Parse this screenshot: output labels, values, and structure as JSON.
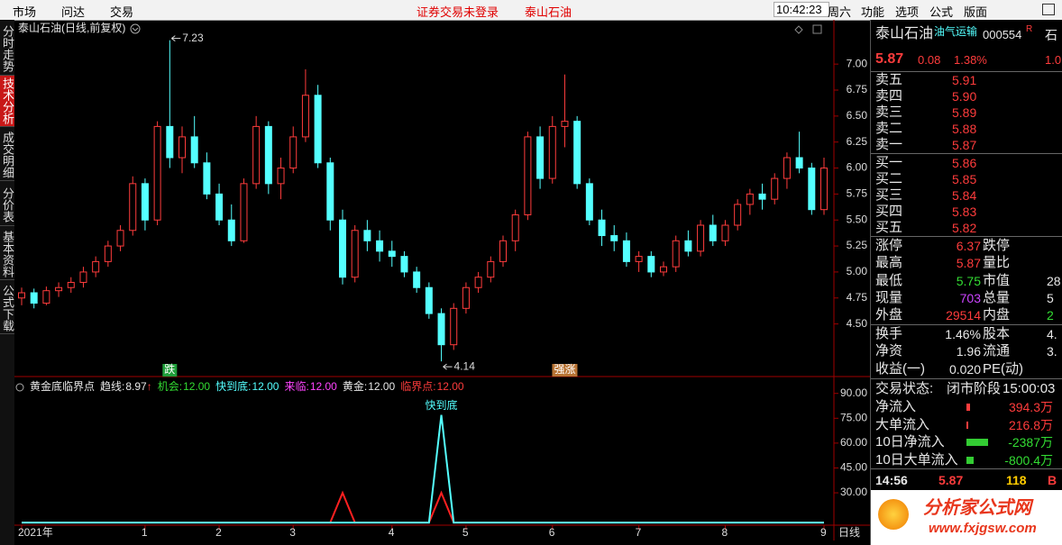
{
  "menu": [
    "市场",
    "问达",
    "交易"
  ],
  "notice": "证券交易未登录",
  "notice_stock": "泰山石油",
  "clock": "10:42:23",
  "weekday": "周六",
  "tools": [
    "功能",
    "选项",
    "公式",
    "版面"
  ],
  "tabs": [
    "分时走势",
    "技术分析",
    "成交明细",
    "分价表",
    "基本资料",
    "公式下载"
  ],
  "active_tab": 1,
  "chart_data": [
    {
      "type": "candlestick",
      "title": "泰山石油(日线,前复权)",
      "open": [
        4.75,
        4.8,
        4.7,
        4.82,
        4.85,
        4.9,
        5.0,
        5.1,
        5.25,
        5.4,
        5.85,
        5.5,
        6.4,
        6.1,
        6.3,
        6.05,
        5.75,
        5.5,
        5.3,
        5.85,
        6.4,
        5.85,
        6.0,
        6.3,
        6.7,
        6.05,
        5.5,
        4.95,
        5.4,
        5.3,
        5.2,
        5.15,
        5.0,
        4.85,
        4.6,
        4.3,
        4.65,
        4.85,
        4.95,
        5.1,
        5.3,
        5.55,
        6.3,
        5.9,
        6.4,
        6.45,
        5.85,
        5.5,
        5.35,
        5.3,
        5.1,
        5.15,
        5.0,
        5.05,
        5.3,
        5.2,
        5.45,
        5.3,
        5.45,
        5.65,
        5.75,
        5.7,
        5.9,
        6.1,
        6.0,
        5.6
      ],
      "high": [
        4.85,
        4.84,
        4.86,
        4.9,
        4.95,
        5.05,
        5.15,
        5.3,
        5.45,
        5.92,
        5.9,
        6.45,
        7.23,
        6.4,
        6.5,
        6.15,
        5.85,
        5.65,
        5.9,
        6.5,
        6.45,
        6.1,
        6.4,
        6.95,
        6.8,
        6.1,
        5.6,
        5.45,
        5.5,
        5.4,
        5.3,
        5.2,
        5.05,
        4.9,
        4.65,
        4.7,
        4.9,
        5.0,
        5.15,
        5.35,
        5.6,
        6.35,
        6.4,
        6.5,
        6.9,
        6.5,
        5.9,
        5.6,
        5.45,
        5.38,
        5.2,
        5.2,
        5.1,
        5.35,
        5.4,
        5.5,
        5.55,
        5.5,
        5.7,
        5.8,
        5.85,
        5.95,
        6.15,
        6.35,
        6.05,
        6.1
      ],
      "low": [
        4.68,
        4.65,
        4.68,
        4.76,
        4.8,
        4.85,
        4.95,
        5.05,
        5.2,
        5.35,
        5.4,
        5.45,
        6.0,
        5.95,
        6.0,
        5.7,
        5.45,
        5.25,
        5.28,
        5.8,
        5.75,
        5.7,
        5.95,
        6.25,
        6.0,
        5.4,
        4.88,
        4.9,
        5.2,
        5.1,
        5.05,
        4.95,
        4.8,
        4.55,
        4.14,
        4.25,
        4.6,
        4.8,
        4.9,
        5.05,
        5.2,
        5.5,
        5.8,
        5.85,
        6.2,
        5.8,
        5.45,
        5.25,
        5.2,
        5.05,
        5.0,
        4.95,
        4.96,
        5.0,
        5.15,
        5.15,
        5.25,
        5.25,
        5.4,
        5.55,
        5.6,
        5.65,
        5.8,
        5.95,
        5.55,
        5.55
      ],
      "close": [
        4.8,
        4.7,
        4.82,
        4.85,
        4.9,
        5.0,
        5.1,
        5.25,
        5.4,
        5.85,
        5.5,
        6.4,
        6.1,
        6.3,
        6.05,
        5.75,
        5.5,
        5.3,
        5.85,
        6.4,
        5.85,
        6.0,
        6.3,
        6.7,
        6.05,
        5.5,
        4.95,
        5.4,
        5.3,
        5.2,
        5.15,
        5.0,
        4.85,
        4.6,
        4.3,
        4.65,
        4.85,
        4.95,
        5.1,
        5.3,
        5.55,
        6.3,
        5.9,
        6.4,
        6.45,
        5.85,
        5.5,
        5.35,
        5.3,
        5.1,
        5.15,
        5.0,
        5.05,
        5.3,
        5.2,
        5.45,
        5.3,
        5.45,
        5.65,
        5.75,
        5.7,
        5.9,
        6.1,
        6.0,
        5.6,
        6.0
      ],
      "up_color": "#ff3c3c",
      "down_color": "#54ffff",
      "ylim": [
        4.02,
        7.27
      ],
      "yticks": [
        {
          "value": 4.5,
          "label": "4.50"
        },
        {
          "value": 4.75,
          "label": "4.75"
        },
        {
          "value": 5,
          "label": "5.00"
        },
        {
          "value": 5.25,
          "label": "5.25"
        },
        {
          "value": 5.5,
          "label": "5.50"
        },
        {
          "value": 5.75,
          "label": "5.75"
        },
        {
          "value": 6,
          "label": "6.00"
        },
        {
          "value": 6.25,
          "label": "6.25"
        },
        {
          "value": 6.5,
          "label": "6.50"
        },
        {
          "value": 6.75,
          "label": "6.75"
        },
        {
          "value": 7,
          "label": "7.00"
        }
      ],
      "signals": [
        {
          "index": 12,
          "label": "跌",
          "color": "#1f9e3a"
        },
        {
          "index": 44,
          "label": "强涨",
          "color": "#b87333"
        }
      ],
      "x_labels": [
        {
          "index": 0,
          "label": "2021年"
        },
        {
          "index": 10,
          "label": "1"
        },
        {
          "index": 16,
          "label": "2"
        },
        {
          "index": 22,
          "label": "3"
        },
        {
          "index": 30,
          "label": "4"
        },
        {
          "index": 36,
          "label": "5"
        },
        {
          "index": 43,
          "label": "6"
        },
        {
          "index": 50,
          "label": "7"
        },
        {
          "index": 57,
          "label": "8"
        },
        {
          "index": 65,
          "label": "9"
        }
      ],
      "period": "日线"
    },
    {
      "type": "line",
      "title": "黄金底临界点",
      "legend": [
        {
          "name": "趋线:",
          "value": "8.97",
          "arrow": "↑",
          "color": "#e8e8e8"
        },
        {
          "name": "机会:",
          "value": "12.00",
          "color": "#33dd33"
        },
        {
          "name": "快到底:",
          "value": "12.00",
          "color": "#54ffff"
        },
        {
          "name": "来临:",
          "value": "12.00",
          "color": "#ff44ff"
        },
        {
          "name": "黄金:",
          "value": "12.00",
          "color": "#e8e8e8"
        },
        {
          "name": "临界点:",
          "value": "12.00",
          "color": "#ff3c3c"
        }
      ],
      "series": [
        {
          "name": "临界点",
          "color": "#ff2020",
          "values": [
            12,
            12,
            12,
            12,
            12,
            12,
            12,
            12,
            12,
            12,
            12,
            12,
            12,
            12,
            12,
            12,
            12,
            12,
            12,
            12,
            12,
            12,
            12,
            12,
            12,
            12,
            30,
            12,
            12,
            12,
            12,
            12,
            12,
            12,
            30,
            12,
            12,
            12,
            12,
            12,
            12,
            12,
            12,
            12,
            12,
            12,
            12,
            12,
            12,
            12,
            12,
            12,
            12,
            12,
            12,
            12,
            12,
            12,
            12,
            12,
            12,
            12,
            12,
            12,
            12,
            12
          ]
        },
        {
          "name": "快到底",
          "color": "#54ffff",
          "values": [
            12,
            12,
            12,
            12,
            12,
            12,
            12,
            12,
            12,
            12,
            12,
            12,
            12,
            12,
            12,
            12,
            12,
            12,
            12,
            12,
            12,
            12,
            12,
            12,
            12,
            12,
            12,
            12,
            12,
            12,
            12,
            12,
            12,
            12,
            77,
            12,
            12,
            12,
            12,
            12,
            12,
            12,
            12,
            12,
            12,
            12,
            12,
            12,
            12,
            12,
            12,
            12,
            12,
            12,
            12,
            12,
            12,
            12,
            12,
            12,
            12,
            12,
            12,
            12,
            12,
            12
          ]
        }
      ],
      "ylim": [
        11,
        98
      ],
      "yticks": [
        {
          "value": 30,
          "label": "30.00"
        },
        {
          "value": 45,
          "label": "45.00"
        },
        {
          "value": 60,
          "label": "60.00"
        },
        {
          "value": 75,
          "label": "75.00"
        },
        {
          "value": 90,
          "label": "90.00"
        }
      ]
    }
  ],
  "quote": {
    "name": "泰山石油",
    "sector": "油气运输",
    "code": "000554",
    "flag": "R",
    "cut_name": "石",
    "price": "5.87",
    "change": "0.08",
    "pct": "1.38%",
    "cut_value": "1.0"
  },
  "asks": [
    {
      "label": "卖五",
      "price": "5.91"
    },
    {
      "label": "卖四",
      "price": "5.90"
    },
    {
      "label": "卖三",
      "price": "5.89"
    },
    {
      "label": "卖二",
      "price": "5.88"
    },
    {
      "label": "卖一",
      "price": "5.87"
    }
  ],
  "bids": [
    {
      "label": "买一",
      "price": "5.86"
    },
    {
      "label": "买二",
      "price": "5.85"
    },
    {
      "label": "买三",
      "price": "5.84"
    },
    {
      "label": "买四",
      "price": "5.83"
    },
    {
      "label": "买五",
      "price": "5.82"
    }
  ],
  "stats": [
    {
      "l": "涨停",
      "v": "6.37",
      "c": "#ff3c3c",
      "l2": "跌停"
    },
    {
      "l": "最高",
      "v": "5.87",
      "c": "#ff3c3c",
      "l2": "量比"
    },
    {
      "l": "最低",
      "v": "5.75",
      "c": "#33dd33",
      "l2": "市值",
      "v2": "28"
    },
    {
      "l": "现量",
      "v": "703",
      "c": "#cc44ff",
      "l2": "总量",
      "v2": "5"
    },
    {
      "l": "外盘",
      "v": "29514",
      "c": "#ff3c3c",
      "l2": "内盘",
      "v2": "2",
      "c2": "#33dd33"
    }
  ],
  "stats2": [
    {
      "l": "换手",
      "v": "1.46%",
      "c": "#e8e8e8",
      "l2": "股本",
      "v2": "4."
    },
    {
      "l": "净资",
      "v": "1.96",
      "c": "#e8e8e8",
      "l2": "流通",
      "v2": "3."
    },
    {
      "l": "收益(一)",
      "v": "0.020",
      "c": "#e8e8e8",
      "l2": "PE(动)"
    }
  ],
  "flow_status": {
    "label": "交易状态:",
    "state": "闭市阶段",
    "time": "15:00:03"
  },
  "flows": [
    {
      "label": "净流入",
      "amount": 394.3,
      "value_label": "394.3万"
    },
    {
      "label": "大单流入",
      "amount": 216.8,
      "value_label": "216.8万"
    },
    {
      "label": "10日净流入",
      "amount": -2387,
      "value_label": "-2387万"
    },
    {
      "label": "10日大单流入",
      "amount": -800.4,
      "value_label": "-800.4万"
    }
  ],
  "tick": {
    "time": "14:56",
    "price": "5.87",
    "volume": "118",
    "side": "B"
  },
  "logo": {
    "name": "分析家公式网",
    "url": "www.fxjgsw.com"
  }
}
